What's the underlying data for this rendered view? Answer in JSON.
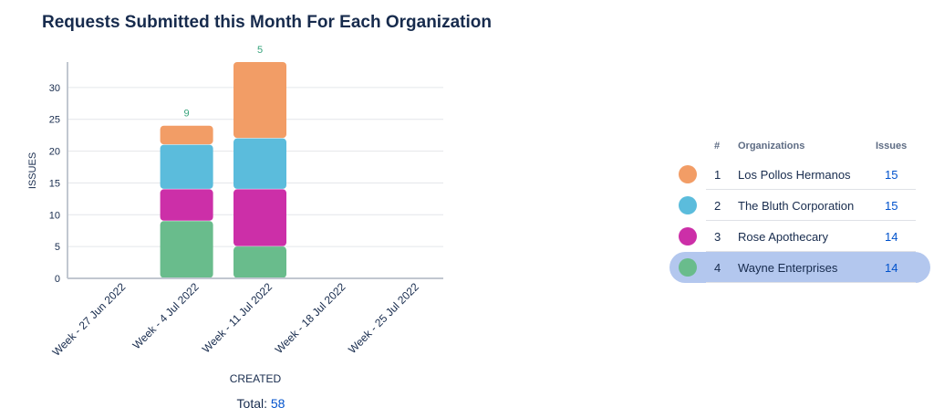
{
  "title": "Requests Submitted this Month For Each Organization",
  "total": {
    "label": "Total:",
    "value": "58"
  },
  "legend": {
    "headers": {
      "rank": "#",
      "org": "Organizations",
      "issues": "Issues"
    },
    "rows": [
      {
        "rank": "1",
        "name": "Los Pollos Hermanos",
        "issues": "15",
        "color": "#f29d66"
      },
      {
        "rank": "2",
        "name": "The Bluth Corporation",
        "issues": "15",
        "color": "#5bbcdc"
      },
      {
        "rank": "3",
        "name": "Rose Apothecary",
        "issues": "14",
        "color": "#cc2fa8"
      },
      {
        "rank": "4",
        "name": "Wayne Enterprises",
        "issues": "14",
        "color": "#69bc8c",
        "selected": true
      }
    ]
  },
  "chart_data": {
    "type": "bar",
    "stacked": true,
    "categories": [
      "Week - 27 Jun 2022",
      "Week - 4 Jul 2022",
      "Week - 11 Jul 2022",
      "Week - 18 Jul 2022",
      "Week - 25 Jul 2022"
    ],
    "series": [
      {
        "name": "Wayne Enterprises",
        "color": "#69bc8c",
        "values": [
          0,
          9,
          5,
          0,
          0
        ]
      },
      {
        "name": "Rose Apothecary",
        "color": "#cc2fa8",
        "values": [
          0,
          5,
          9,
          0,
          0
        ]
      },
      {
        "name": "The Bluth Corporation",
        "color": "#5bbcdc",
        "values": [
          0,
          7,
          8,
          0,
          0
        ]
      },
      {
        "name": "Los Pollos Hermanos",
        "color": "#f29d66",
        "values": [
          0,
          3,
          12,
          0,
          0
        ]
      }
    ],
    "data_labels": [
      "",
      "9",
      "5",
      "",
      ""
    ],
    "xlabel": "CREATED",
    "ylabel": "ISSUES",
    "yticks": [
      0,
      5,
      10,
      15,
      20,
      25,
      30
    ],
    "ylim": [
      0,
      34
    ],
    "grid": true
  }
}
